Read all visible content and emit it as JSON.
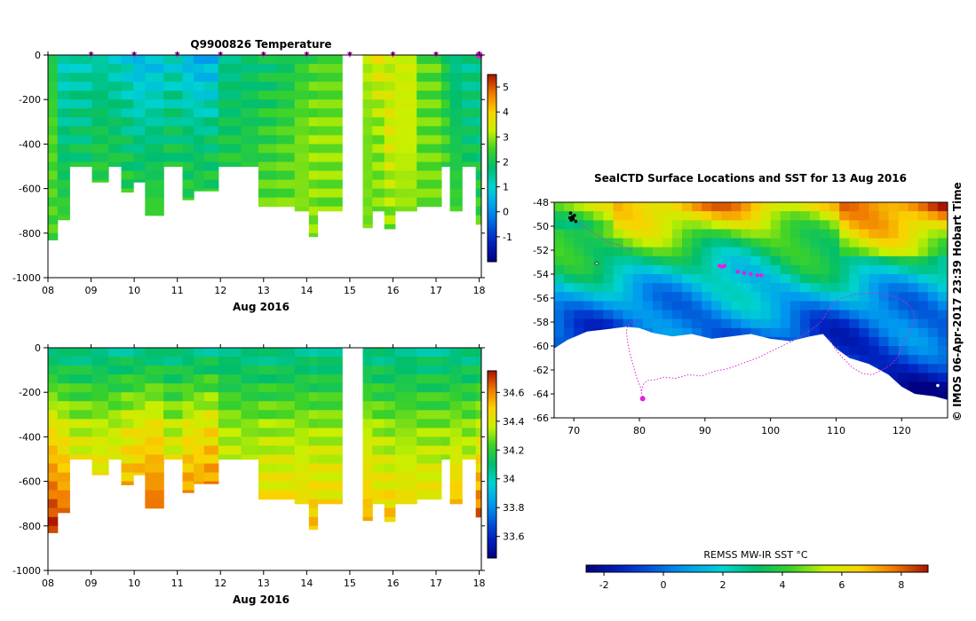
{
  "chart_data": [
    {
      "type": "heatmap",
      "title": "Q9900826  Temperature",
      "variable": "temperature",
      "xlabel": "Aug 2016",
      "x_ticks": [
        "08",
        "09",
        "10",
        "11",
        "12",
        "13",
        "14",
        "15",
        "16",
        "17",
        "18"
      ],
      "xlim": [
        8.0,
        18.05
      ],
      "ylim": [
        -1000,
        0
      ],
      "y_ticks": [
        0,
        -200,
        -400,
        -600,
        -800,
        -1000
      ],
      "colorbar": {
        "min": -2,
        "max": 5.5,
        "ticks": [
          -1,
          0,
          1,
          2,
          3,
          4,
          5
        ]
      },
      "profile_markers_x": [
        9.0,
        10.0,
        11.0,
        12.0,
        13.0,
        14.0,
        15.0,
        16.0,
        17.0,
        18.0
      ],
      "profiles_note": "columns: start day, end day, max depth (m), surface value, mid value, deep value",
      "profiles": [
        [
          8.0,
          8.22,
          -830,
          2.1,
          2.6,
          2.5
        ],
        [
          8.22,
          8.5,
          -740,
          1.1,
          1.6,
          2.6
        ],
        [
          8.5,
          9.02,
          -500,
          1.2,
          1.7,
          2.7
        ],
        [
          9.02,
          9.4,
          -570,
          1.3,
          2.0,
          2.6
        ],
        [
          9.4,
          9.7,
          -500,
          1.1,
          1.9,
          2.6
        ],
        [
          9.7,
          9.98,
          -615,
          0.9,
          1.7,
          2.7
        ],
        [
          9.98,
          10.25,
          -570,
          0.5,
          1.5,
          2.6
        ],
        [
          10.25,
          10.68,
          -720,
          0.6,
          1.6,
          2.7
        ],
        [
          10.68,
          11.12,
          -500,
          1.0,
          1.8,
          2.6
        ],
        [
          11.12,
          11.38,
          -650,
          0.5,
          1.7,
          2.6
        ],
        [
          11.38,
          11.62,
          -610,
          0.3,
          1.6,
          2.7
        ],
        [
          11.62,
          11.95,
          -610,
          0.4,
          1.7,
          2.6
        ],
        [
          11.95,
          12.48,
          -500,
          1.5,
          2.0,
          2.7
        ],
        [
          12.48,
          12.88,
          -500,
          1.7,
          2.1,
          2.6
        ],
        [
          12.88,
          13.3,
          -680,
          1.8,
          2.3,
          2.8
        ],
        [
          13.3,
          13.72,
          -680,
          1.9,
          2.5,
          2.8
        ],
        [
          13.72,
          14.05,
          -700,
          2.2,
          2.8,
          2.9
        ],
        [
          14.05,
          14.25,
          -815,
          2.4,
          2.9,
          2.9
        ],
        [
          14.25,
          14.82,
          -700,
          2.5,
          2.9,
          2.8
        ],
        [
          15.3,
          15.52,
          -775,
          3.2,
          2.8,
          2.8
        ],
        [
          15.52,
          15.8,
          -700,
          3.6,
          2.9,
          2.8
        ],
        [
          15.8,
          16.05,
          -780,
          3.2,
          3.5,
          2.8
        ],
        [
          16.05,
          16.55,
          -700,
          3.3,
          3.3,
          2.8
        ],
        [
          16.55,
          17.12,
          -680,
          2.6,
          2.7,
          2.8
        ],
        [
          17.12,
          17.32,
          -500,
          2.0,
          2.4,
          2.6
        ],
        [
          17.32,
          17.6,
          -700,
          1.5,
          2.0,
          2.6
        ],
        [
          17.6,
          17.92,
          -500,
          1.5,
          1.8,
          2.6
        ],
        [
          17.92,
          18.05,
          -760,
          1.6,
          1.7,
          2.6
        ]
      ]
    },
    {
      "type": "heatmap",
      "title": "",
      "variable": "salinity",
      "xlabel": "Aug 2016",
      "x_ticks": [
        "08",
        "09",
        "10",
        "11",
        "12",
        "13",
        "14",
        "15",
        "16",
        "17",
        "18"
      ],
      "xlim": [
        8.0,
        18.05
      ],
      "ylim": [
        -1000,
        0
      ],
      "y_ticks": [
        0,
        -200,
        -400,
        -600,
        -800,
        -1000
      ],
      "colorbar": {
        "min": 33.45,
        "max": 34.75,
        "ticks": [
          33.6,
          33.8,
          34.0,
          34.2,
          34.4,
          34.6
        ]
      },
      "profiles_note": "same profile columns and depths as the temperature panel; surface, mid, deep salinity",
      "salinity_values": [
        [
          34.05,
          34.45,
          34.72
        ],
        [
          34.05,
          34.4,
          34.68
        ],
        [
          34.05,
          34.35,
          34.55
        ],
        [
          34.05,
          34.35,
          34.55
        ],
        [
          34.05,
          34.35,
          34.55
        ],
        [
          34.05,
          34.4,
          34.62
        ],
        [
          34.05,
          34.42,
          34.65
        ],
        [
          34.05,
          34.45,
          34.68
        ],
        [
          34.05,
          34.35,
          34.55
        ],
        [
          34.05,
          34.42,
          34.65
        ],
        [
          34.05,
          34.42,
          34.66
        ],
        [
          34.05,
          34.45,
          34.68
        ],
        [
          34.05,
          34.32,
          34.45
        ],
        [
          34.05,
          34.3,
          34.42
        ],
        [
          34.05,
          34.32,
          34.5
        ],
        [
          34.05,
          34.32,
          34.5
        ],
        [
          34.05,
          34.32,
          34.5
        ],
        [
          34.05,
          34.32,
          34.52
        ],
        [
          34.05,
          34.32,
          34.5
        ],
        [
          34.05,
          34.35,
          34.55
        ],
        [
          34.05,
          34.32,
          34.5
        ],
        [
          34.05,
          34.3,
          34.52
        ],
        [
          34.05,
          34.3,
          34.5
        ],
        [
          34.05,
          34.3,
          34.5
        ],
        [
          34.05,
          34.3,
          34.45
        ],
        [
          34.05,
          34.32,
          34.58
        ],
        [
          34.05,
          34.3,
          34.48
        ],
        [
          34.05,
          34.35,
          34.68
        ]
      ]
    },
    {
      "type": "heatmap",
      "title": "SealCTD Surface Locations and SST for 13 Aug 2016",
      "variable": "sst_map",
      "xlim": [
        67,
        127
      ],
      "ylim": [
        -66,
        -48
      ],
      "x_ticks": [
        70,
        80,
        90,
        100,
        110,
        120
      ],
      "y_ticks": [
        -48,
        -50,
        -52,
        -54,
        -56,
        -58,
        -60,
        -62,
        -64,
        -66
      ],
      "side_label": "© IMOS 06-Apr-2017 23:39 Hobart Time",
      "colorbar": {
        "label": "REMSS MW-IR SST °C",
        "min": -2.6,
        "max": 8.9,
        "ticks": [
          -2,
          0,
          2,
          4,
          6,
          8
        ]
      },
      "track_lon": [
        80.5,
        80.3,
        80.6,
        81.2,
        82.5,
        83.8,
        85.5,
        87.5,
        89.5,
        91.5,
        93.5,
        95.0,
        96.5,
        98.0,
        99.5,
        101.0,
        102.5,
        104.0,
        105.5,
        106.8,
        107.8,
        108.5,
        109.2,
        110.0,
        111.5,
        113.0,
        114.5,
        116.0,
        117.5,
        119.0,
        120.5,
        121.5,
        122.0,
        121.5,
        120.8,
        120.0,
        119.5,
        118.5,
        117.0,
        115.5,
        114.0,
        112.5,
        111.0,
        109.8,
        109.0
      ],
      "track_lat": [
        -64.5,
        -63.8,
        -63.2,
        -62.9,
        -62.8,
        -62.6,
        -62.7,
        -62.4,
        -62.5,
        -62.1,
        -61.9,
        -61.6,
        -61.3,
        -61.0,
        -60.6,
        -60.2,
        -59.8,
        -59.4,
        -58.9,
        -58.4,
        -57.9,
        -57.3,
        -56.7,
        -56.2,
        -55.9,
        -55.7,
        -55.6,
        -55.6,
        -55.7,
        -55.9,
        -56.3,
        -56.9,
        -57.6,
        -58.4,
        -59.2,
        -60.0,
        -60.8,
        -61.5,
        -62.0,
        -62.4,
        -62.3,
        -61.8,
        -61.0,
        -60.2,
        -59.4
      ],
      "track2_lon": [
        80.5,
        80.2,
        79.5,
        79.0,
        78.5,
        78.2,
        78.0,
        78.3,
        79.0,
        80.0
      ],
      "track2_lat": [
        -64.5,
        -63.5,
        -62.5,
        -61.5,
        -60.5,
        -59.6,
        -58.8,
        -58.2,
        -57.9,
        -57.8
      ],
      "track3_lon": [
        69.5,
        71.0,
        72.5,
        74.0,
        75.5,
        77.0,
        78.0,
        79.0
      ],
      "track3_lat": [
        -49.3,
        -49.8,
        -50.4,
        -50.9,
        -51.4,
        -51.6,
        -51.8,
        -52.0
      ],
      "cluster_lon": [
        92.2,
        92.6,
        93.0,
        95.0,
        96.0,
        97.0,
        98.0,
        98.6
      ],
      "cluster_lat": [
        -53.3,
        -53.4,
        -53.3,
        -53.8,
        -53.9,
        -54.0,
        -54.1,
        -54.1
      ],
      "current_position": [
        80.5,
        -64.4
      ],
      "island_lon": [
        69.5,
        69.8,
        70.1,
        69.6,
        69.9,
        70.3,
        69.4
      ],
      "island_lat": [
        -48.9,
        -49.2,
        -49.1,
        -49.5,
        -49.4,
        -49.6,
        -49.3
      ]
    }
  ]
}
